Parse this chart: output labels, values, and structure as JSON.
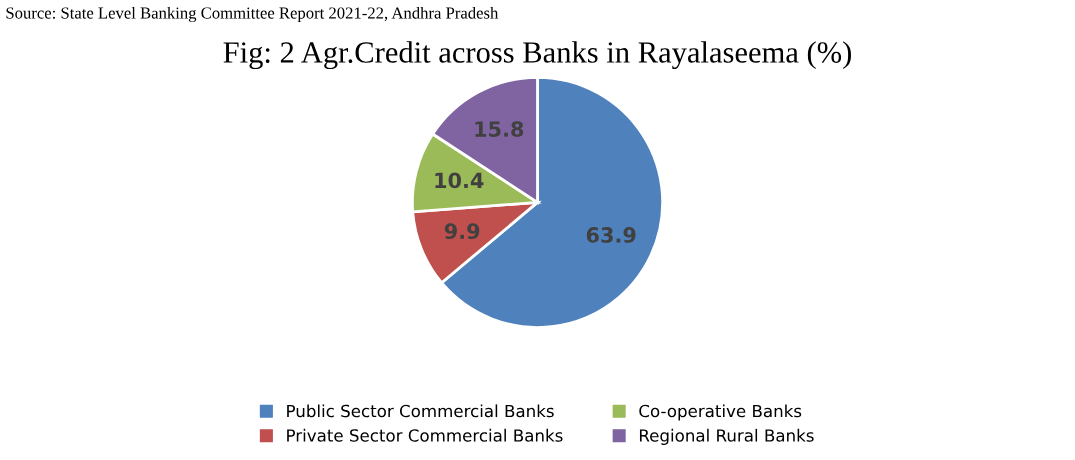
{
  "chart_data": {
    "type": "pie",
    "title": "Fig: 2 Agr.Credit across Banks in Rayalaseema (%)",
    "annotations": [
      "Source: State Level Banking Committee Report 2021-22, Andhra Pradesh"
    ],
    "categories": [
      "Public Sector Commercial Banks",
      "Private Sector Commercial Banks",
      "Co-operative Banks",
      "Regional Rural Banks"
    ],
    "values": [
      63.9,
      9.9,
      10.4,
      15.8
    ],
    "colors": [
      "#4f81bd",
      "#c0504d",
      "#9bbb59",
      "#8064a2"
    ],
    "data_labels": true,
    "legend": "bottom"
  }
}
